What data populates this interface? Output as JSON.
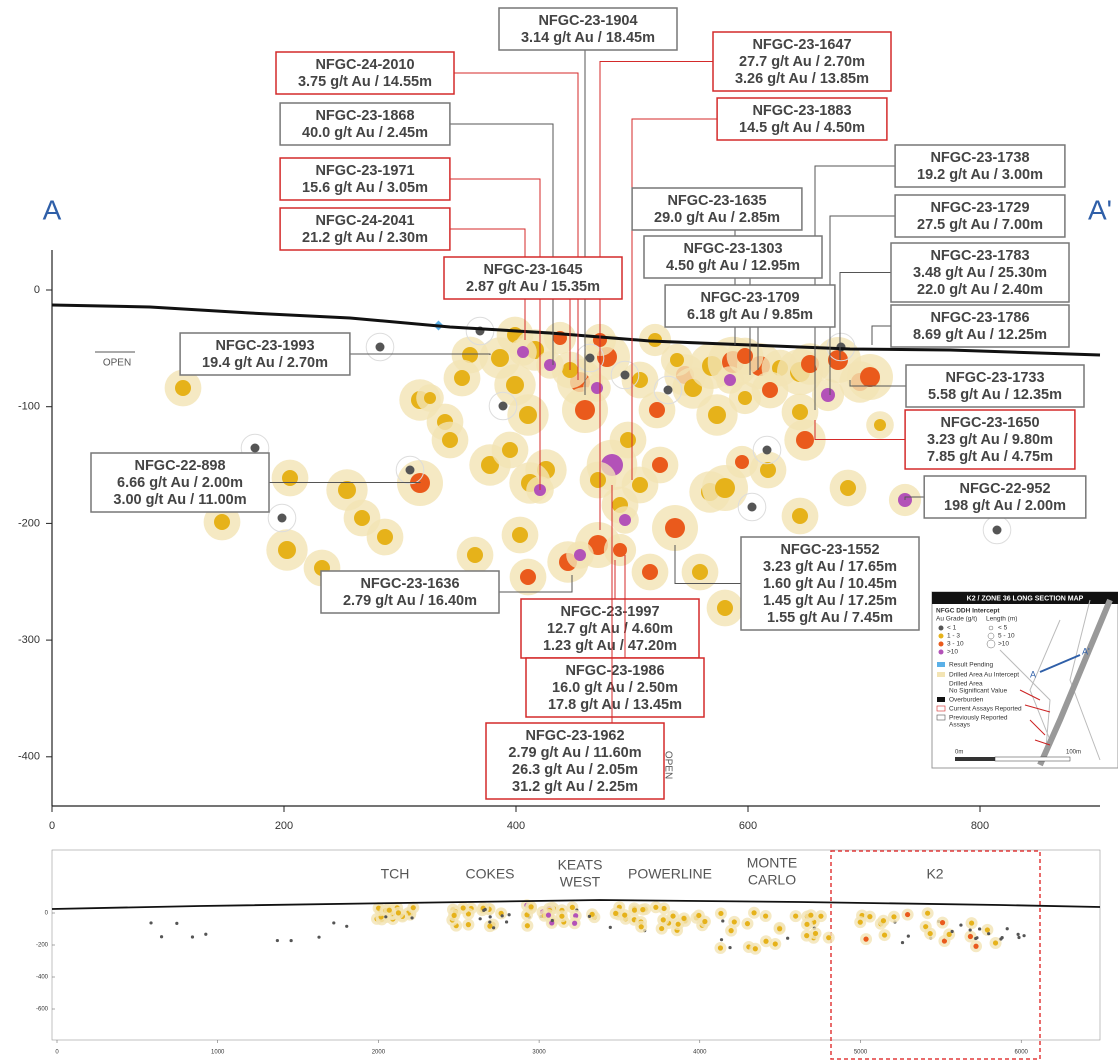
{
  "section": {
    "left_label": "A",
    "right_label": "A'",
    "open_left": "OPEN",
    "open_bottom": "OPEN",
    "xticks": [
      0,
      200,
      400,
      600,
      800
    ],
    "yticks": [
      0,
      -100,
      -200,
      -300,
      -400
    ]
  },
  "callouts": [
    {
      "lines": [
        "NFGC-23-1904",
        "3.14 g/t Au / 18.45m"
      ],
      "current": false
    },
    {
      "lines": [
        "NFGC-24-2010",
        "3.75 g/t Au / 14.55m"
      ],
      "current": true
    },
    {
      "lines": [
        "NFGC-23-1647",
        "27.7 g/t Au / 2.70m",
        "3.26 g/t Au / 13.85m"
      ],
      "current": true
    },
    {
      "lines": [
        "NFGC-23-1868",
        "40.0 g/t Au / 2.45m"
      ],
      "current": false
    },
    {
      "lines": [
        "NFGC-23-1883",
        "14.5 g/t Au / 4.50m"
      ],
      "current": true
    },
    {
      "lines": [
        "NFGC-23-1971",
        "15.6 g/t Au / 3.05m"
      ],
      "current": true
    },
    {
      "lines": [
        "NFGC-23-1738",
        "19.2 g/t Au / 3.00m"
      ],
      "current": false
    },
    {
      "lines": [
        "NFGC-23-1635",
        "29.0 g/t Au / 2.85m"
      ],
      "current": false
    },
    {
      "lines": [
        "NFGC-23-1729",
        "27.5 g/t Au / 7.00m"
      ],
      "current": false
    },
    {
      "lines": [
        "NFGC-24-2041",
        "21.2 g/t Au / 2.30m"
      ],
      "current": true
    },
    {
      "lines": [
        "NFGC-23-1303",
        "4.50 g/t Au / 12.95m"
      ],
      "current": false
    },
    {
      "lines": [
        "NFGC-23-1783",
        "3.48 g/t Au / 25.30m",
        "22.0 g/t Au / 2.40m"
      ],
      "current": false
    },
    {
      "lines": [
        "NFGC-23-1645",
        "2.87 g/t Au / 15.35m"
      ],
      "current": true
    },
    {
      "lines": [
        "NFGC-23-1709",
        "6.18 g/t Au / 9.85m"
      ],
      "current": false
    },
    {
      "lines": [
        "NFGC-23-1786",
        "8.69 g/t Au / 12.25m"
      ],
      "current": false
    },
    {
      "lines": [
        "NFGC-23-1993",
        "19.4 g/t Au / 2.70m"
      ],
      "current": false
    },
    {
      "lines": [
        "NFGC-23-1733",
        "5.58 g/t Au / 12.35m"
      ],
      "current": false
    },
    {
      "lines": [
        "NFGC-23-1650",
        "3.23 g/t Au / 9.80m",
        "7.85 g/t Au / 4.75m"
      ],
      "current": true
    },
    {
      "lines": [
        "NFGC-22-898",
        "6.66 g/t Au / 2.00m",
        "3.00 g/t Au / 11.00m"
      ],
      "current": false
    },
    {
      "lines": [
        "NFGC-22-952",
        "198 g/t Au / 2.00m"
      ],
      "current": false
    },
    {
      "lines": [
        "NFGC-23-1552",
        "3.23 g/t Au / 17.65m",
        "1.60 g/t Au / 10.45m",
        "1.45 g/t Au / 17.25m",
        "1.55 g/t Au / 7.45m"
      ],
      "current": false
    },
    {
      "lines": [
        "NFGC-23-1636",
        "2.79 g/t Au / 16.40m"
      ],
      "current": false
    },
    {
      "lines": [
        "NFGC-23-1997",
        "12.7 g/t Au / 4.60m",
        "1.23 g/t Au / 47.20m"
      ],
      "current": true
    },
    {
      "lines": [
        "NFGC-23-1986",
        "16.0 g/t Au / 2.50m",
        "17.8 g/t Au / 13.45m"
      ],
      "current": true
    },
    {
      "lines": [
        "NFGC-23-1962",
        "2.79 g/t Au / 11.60m",
        "26.3 g/t Au / 2.05m",
        "31.2 g/t Au / 2.25m"
      ],
      "current": true
    }
  ],
  "legend": {
    "title": "K2 / ZONE 36 LONG SECTION MAP",
    "subtitle": "NFGC DDH Intercept",
    "grade_header": "Au Grade (g/t)",
    "length_header": "Length (m)",
    "grades": [
      "< 1",
      "1 - 3",
      "3 - 10",
      ">10"
    ],
    "lengths": [
      "< 5",
      "5 - 10",
      ">10"
    ],
    "items": [
      "Result Pending",
      "Drilled Area Au Intercept",
      "Drilled Area",
      "No Significant Value",
      "Overburden",
      "Current Assays Reported",
      "Previously Reported",
      "Assays"
    ],
    "map_a": "A",
    "map_a2": "A'",
    "scale_start": "0m",
    "scale_end": "100m"
  },
  "overview": {
    "zones": [
      "TCH",
      "COKES",
      "KEATS",
      "WEST",
      "POWERLINE",
      "MONTE",
      "CARLO",
      "K2"
    ],
    "xticks": [
      0,
      1000,
      2000,
      3000,
      4000,
      5000,
      6000
    ],
    "yticks": [
      0,
      -200,
      -400,
      -600
    ]
  }
}
